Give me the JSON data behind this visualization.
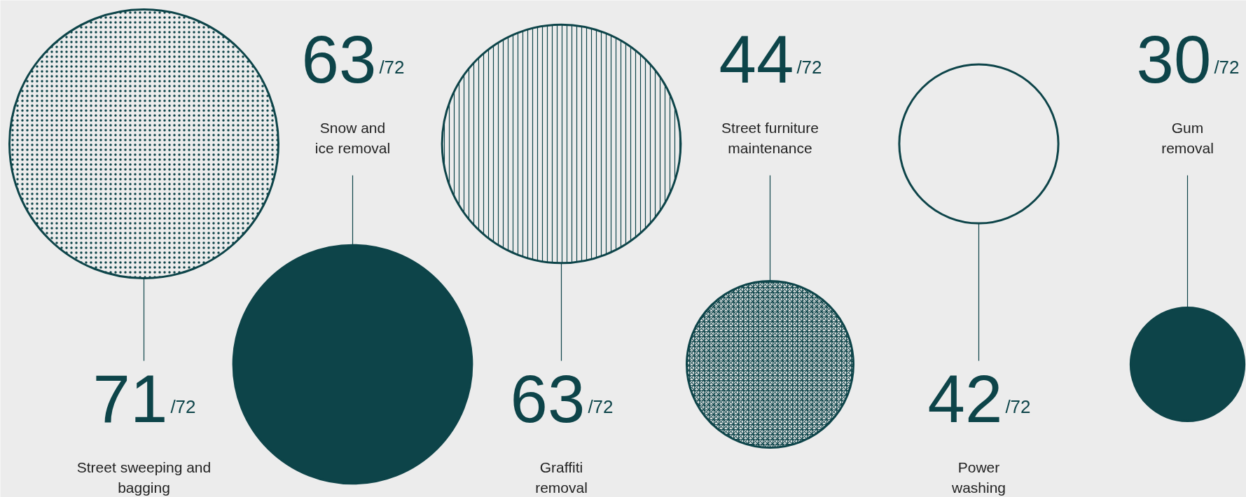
{
  "chart_data": {
    "type": "other",
    "categories": [
      "Street sweeping and\nbagging",
      "Snow and\nice removal",
      "Graffiti\nremoval",
      "Street furniture\nmaintenance",
      "Power\nwashing",
      "Gum\nremoval"
    ],
    "values": [
      71,
      63,
      63,
      44,
      42,
      30
    ],
    "data_labels": true,
    "annotations": [
      "/72",
      "/72",
      "/72",
      "/72",
      "/72",
      "/72"
    ],
    "color": "#0d4449"
  }
}
